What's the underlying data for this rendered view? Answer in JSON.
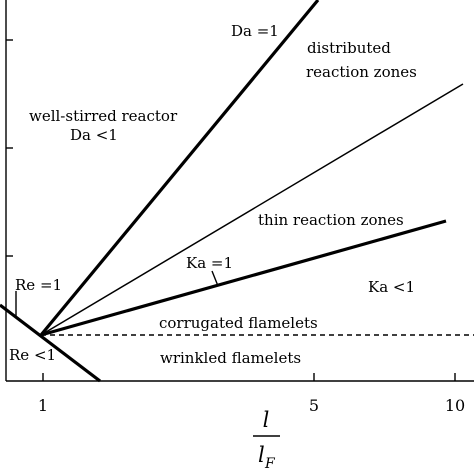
{
  "diagram": {
    "regions": {
      "well_stirred_line1": "well-stirred reactor",
      "well_stirred_line2": "Da <1",
      "distributed_line1": "distributed",
      "distributed_line2": "reaction zones",
      "thin_reaction": "thin reaction zones",
      "corrugated": "corrugated flamelets",
      "wrinkled": "wrinkled flamelets",
      "ka_less": "Ka <1",
      "re_less": "Re <1"
    },
    "boundaries": {
      "da": "Da =1",
      "ka": "Ka =1",
      "re": "Re =1"
    },
    "x_axis": {
      "ticks": [
        "1",
        "5",
        "10"
      ],
      "label_numerator": "l",
      "label_denominator_base": "l",
      "label_denominator_sub": "F"
    }
  }
}
